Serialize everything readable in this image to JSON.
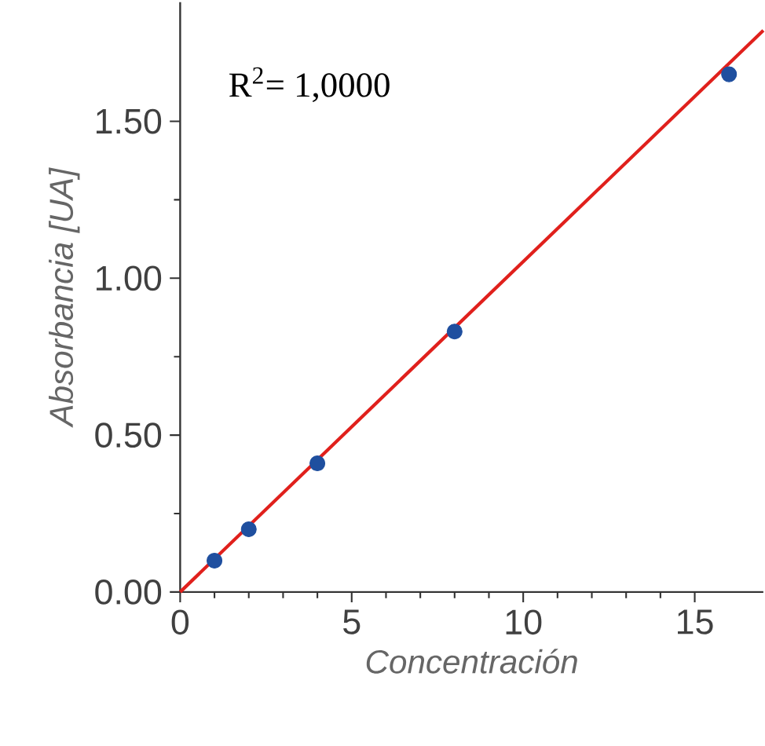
{
  "chart_data": {
    "type": "scatter",
    "xlabel": "Concentración",
    "ylabel": "Absorbancia [UA]",
    "annotations": [
      "R$^{2}$= 1,0000"
    ],
    "series": [
      {
        "color": "#1f4f9f",
        "x": [
          1,
          2,
          4,
          8,
          16
        ],
        "values": [
          0.1,
          0.2,
          0.41,
          0.83,
          1.65
        ],
        "marker": "circle"
      },
      {
        "type": "line",
        "color": "#e0201c",
        "x": [
          0,
          17
        ],
        "values": [
          0,
          1.79
        ],
        "marker": "none",
        "line_style": "solid"
      }
    ],
    "xlim": [
      0,
      17
    ],
    "ylim": [
      0,
      1.88
    ],
    "xticks": [
      0,
      5,
      10,
      15
    ],
    "yticks": [
      {
        "value": 0,
        "label": "0.00"
      },
      {
        "value": 0.5,
        "label": "0.50"
      },
      {
        "value": 1,
        "label": "1.00"
      },
      {
        "value": 1.5,
        "label": "1.50"
      }
    ],
    "grid": false
  }
}
